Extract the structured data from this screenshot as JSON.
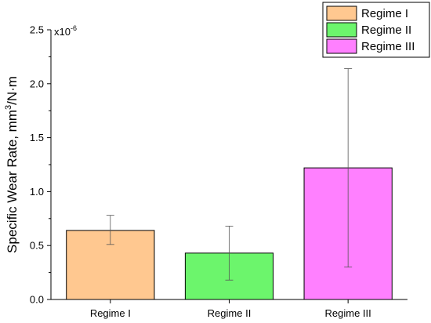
{
  "chart_data": {
    "type": "bar",
    "categories": [
      "Regime I",
      "Regime II",
      "Regime III"
    ],
    "values": [
      0.64,
      0.43,
      1.22
    ],
    "errors_low": [
      0.51,
      0.18,
      0.3
    ],
    "errors_high": [
      0.78,
      0.68,
      2.14
    ],
    "colors": [
      "#FFC890",
      "#6CF56C",
      "#FF80FF"
    ],
    "legend": [
      "Regime I",
      "Regime II",
      "Regime III"
    ],
    "legend_position": "top-right",
    "ylabel": "Specific Wear Rate, mm",
    "ylabel_sup": "3",
    "ylabel_tail": "/N·m",
    "y_multiplier": "x10",
    "y_multiplier_exp": "-6",
    "ylim": [
      0,
      2.5
    ],
    "yticks": [
      "0.0",
      "0.5",
      "1.0",
      "1.5",
      "2.0",
      "2.5"
    ],
    "grid": false
  }
}
